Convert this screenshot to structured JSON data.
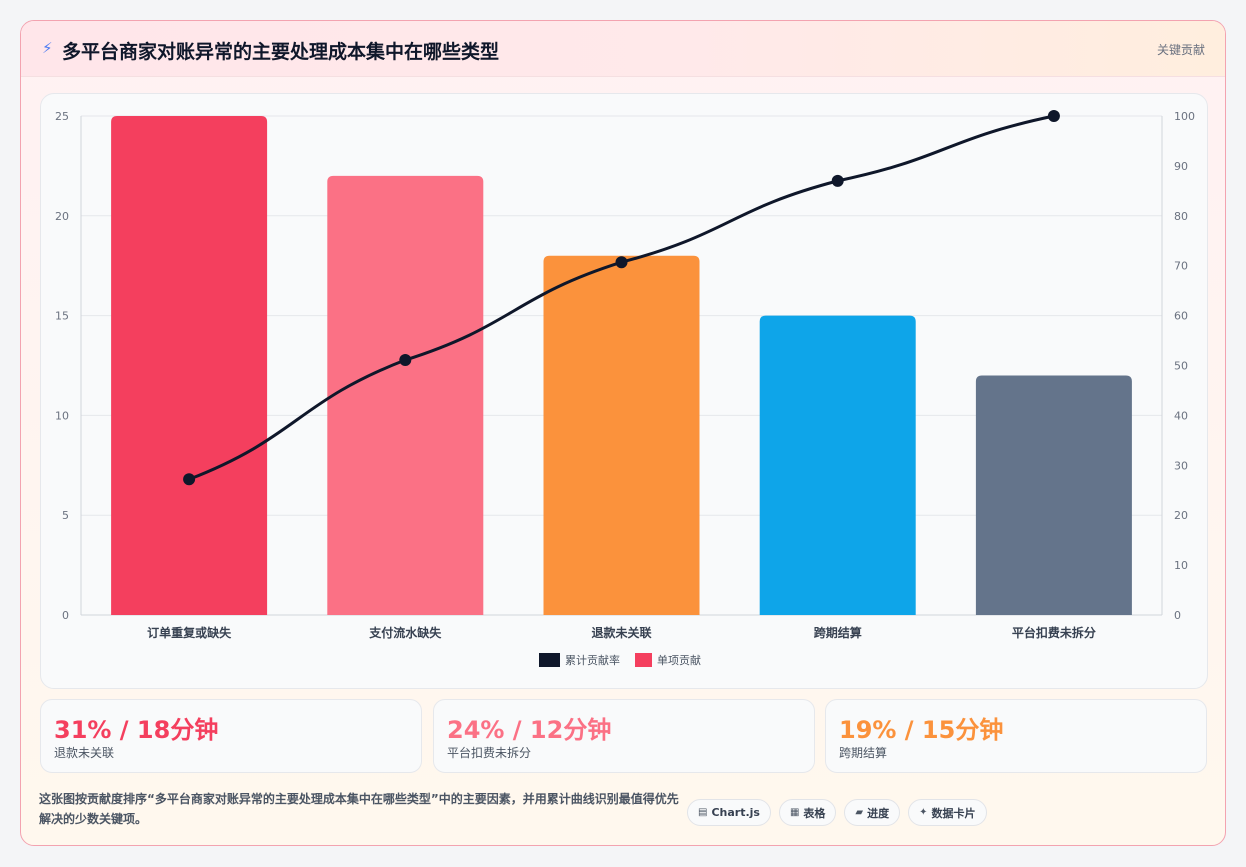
{
  "header": {
    "icon": "lightning-icon",
    "title": "多平台商家对账异常的主要处理成本集中在哪些类型",
    "tag": "关键贡献"
  },
  "chart_data": {
    "type": "bar",
    "categories": [
      "订单重复或缺失",
      "支付流水缺失",
      "退款未关联",
      "跨期结算",
      "平台扣费未拆分"
    ],
    "series": [
      {
        "name": "单项贡献",
        "type": "bar",
        "axis": "left",
        "values": [
          25,
          22,
          18,
          15,
          12
        ],
        "colors": [
          "#f43f5e",
          "#fb7185",
          "#fb923c",
          "#0ea5e9",
          "#64748b"
        ]
      },
      {
        "name": "累计贡献率",
        "type": "line",
        "axis": "right",
        "values": [
          27.2,
          51.1,
          70.7,
          87.0,
          100
        ],
        "color": "#0f172a"
      }
    ],
    "ylim": [
      0,
      25
    ],
    "yticks": [
      0,
      5,
      10,
      15,
      20,
      25
    ],
    "y2lim": [
      0,
      100
    ],
    "y2ticks": [
      0,
      10,
      20,
      30,
      40,
      50,
      60,
      70,
      80,
      90,
      100
    ],
    "legend": [
      "累计贡献率",
      "单项贡献"
    ],
    "legend_position": "bottom",
    "grid": true
  },
  "kpis": [
    {
      "value": "31% / 18分钟",
      "label": "退款未关联",
      "color": "#f43f5e"
    },
    {
      "value": "24% / 12分钟",
      "label": "平台扣费未拆分",
      "color": "#fb7185"
    },
    {
      "value": "19% / 15分钟",
      "label": "跨期结算",
      "color": "#fb923c"
    }
  ],
  "note": "这张图按贡献度排序“多平台商家对账异常的主要处理成本集中在哪些类型”中的主要因素，并用累计曲线识别最值得优先解决的少数关键项。",
  "chips": [
    {
      "icon": "chart-icon",
      "glyph": "▤",
      "label": "Chart.js"
    },
    {
      "icon": "table-icon",
      "glyph": "▦",
      "label": "表格"
    },
    {
      "icon": "progress-icon",
      "glyph": "▰",
      "label": "进度"
    },
    {
      "icon": "sparkle-icon",
      "glyph": "✦",
      "label": "数据卡片"
    }
  ]
}
